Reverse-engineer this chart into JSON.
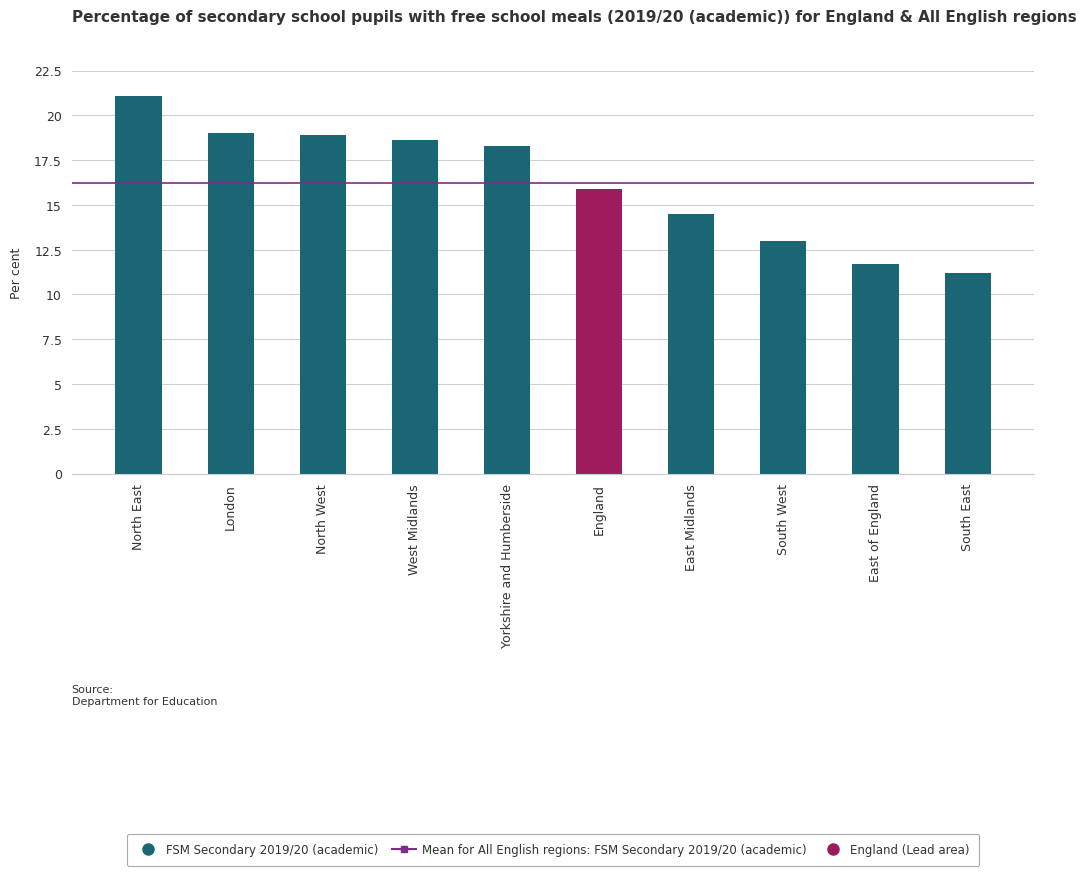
{
  "title": "Percentage of secondary school pupils with free school meals (2019/20 (academic)) for England & All English regions",
  "categories": [
    "North East",
    "London",
    "North West",
    "West Midlands",
    "Yorkshire and Humberside",
    "England",
    "East Midlands",
    "South West",
    "East of England",
    "South East"
  ],
  "values": [
    21.1,
    19.0,
    18.9,
    18.6,
    18.3,
    15.9,
    14.5,
    13.0,
    11.7,
    11.2
  ],
  "bar_colors": [
    "#1a6674",
    "#1a6674",
    "#1a6674",
    "#1a6674",
    "#1a6674",
    "#9e1b5e",
    "#1a6674",
    "#1a6674",
    "#1a6674",
    "#1a6674"
  ],
  "mean_line_value": 16.2,
  "mean_line_color": "#7b2d8b",
  "ylim": [
    0,
    22.5
  ],
  "yticks": [
    0,
    2.5,
    5,
    7.5,
    10,
    12.5,
    15,
    17.5,
    20,
    22.5
  ],
  "ylabel": "Per cent",
  "background_color": "#ffffff",
  "grid_color": "#d0d0d0",
  "legend_teal": "#1a6674",
  "legend_pink": "#9e1b5e",
  "legend_purple": "#7b2d8b",
  "source_text": "Source:\nDepartment for Education",
  "title_fontsize": 11,
  "axis_label_fontsize": 9,
  "tick_fontsize": 9,
  "bar_width": 0.5
}
